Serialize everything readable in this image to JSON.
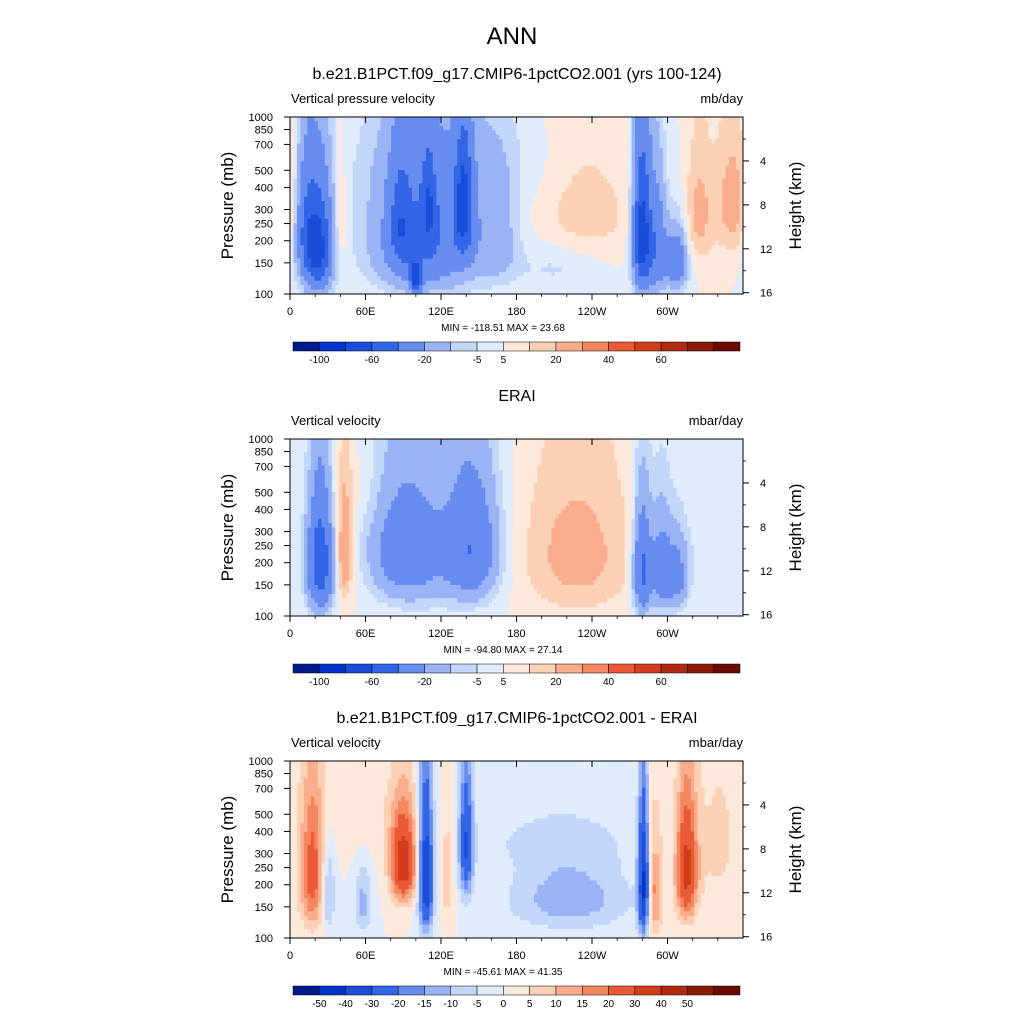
{
  "figure": {
    "main_title": "ANN"
  },
  "colors": {
    "land": "#000000",
    "axis": "#000000"
  },
  "chart_data": [
    {
      "type": "heatmap",
      "title": "b.e21.B1PCT.f09_g17.CMIP6-1pctCO2.001 (yrs 100-124)",
      "left_label": "Vertical pressure velocity",
      "right_label": "mb/day",
      "ylabel": "Pressure (mb)",
      "ylabel_right": "Height (km)",
      "x_ticks": [
        "0",
        "60E",
        "120E",
        "180",
        "120W",
        "60W"
      ],
      "x_tick_values": [
        0,
        60,
        120,
        180,
        240,
        300
      ],
      "xlim": [
        0,
        360
      ],
      "y_ticks": [
        "100",
        "150",
        "200",
        "250",
        "300",
        "400",
        "500",
        "700",
        "850",
        "1000"
      ],
      "y_tick_values": [
        100,
        150,
        200,
        250,
        300,
        400,
        500,
        700,
        850,
        1000
      ],
      "ylim": [
        1000,
        100
      ],
      "height_ticks": [
        "4",
        "8",
        "12",
        "16"
      ],
      "height_tick_values": [
        4,
        8,
        12,
        16
      ],
      "stats": "MIN = -118.51  MAX =  23.68",
      "min": -118.51,
      "max": 23.68,
      "colorbar_labels": [
        "-100",
        "-60",
        "-20",
        "-5",
        "5",
        "20",
        "40",
        "60"
      ],
      "colorbar_colors": [
        "#001a8c",
        "#0033cc",
        "#1a4dd9",
        "#3366e6",
        "#668cf0",
        "#99b3f5",
        "#c2d6fa",
        "#e0ecfc",
        "#fde9dc",
        "#fcd0b4",
        "#f9ad8c",
        "#f48660",
        "#ea5a34",
        "#d23d1c",
        "#b02a12",
        "#8c1a08",
        "#6b0a00"
      ],
      "topography": true,
      "features": [
        {
          "lon": 22,
          "lev": 550,
          "sx": 8,
          "sy": 260,
          "amp": -70
        },
        {
          "lon": 12,
          "lev": 400,
          "sx": 6,
          "sy": 220,
          "amp": -25
        },
        {
          "lon": 40,
          "lev": 400,
          "sx": 3.5,
          "sy": 220,
          "amp": 9
        },
        {
          "lon": 108,
          "lev": 480,
          "sx": 28,
          "sy": 290,
          "amp": -42
        },
        {
          "lon": 88,
          "lev": 400,
          "sx": 6,
          "sy": 190,
          "amp": -30
        },
        {
          "lon": 110,
          "lev": 320,
          "sx": 4,
          "sy": 140,
          "amp": -30
        },
        {
          "lon": 138,
          "lev": 320,
          "sx": 5,
          "sy": 170,
          "amp": -55
        },
        {
          "lon": 100,
          "lev": 820,
          "sx": 3,
          "sy": 120,
          "amp": -60
        },
        {
          "lon": 165,
          "lev": 480,
          "sx": 12,
          "sy": 250,
          "amp": -12
        },
        {
          "lon": 235,
          "lev": 320,
          "sx": 26,
          "sy": 200,
          "amp": 9
        },
        {
          "lon": 212,
          "lev": 700,
          "sx": 25,
          "sy": 160,
          "amp": -6
        },
        {
          "lon": 280,
          "lev": 480,
          "sx": 5,
          "sy": 290,
          "amp": -75
        },
        {
          "lon": 292,
          "lev": 550,
          "sx": 5,
          "sy": 260,
          "amp": -35
        },
        {
          "lon": 307,
          "lev": 650,
          "sx": 6,
          "sy": 180,
          "amp": -35
        },
        {
          "lon": 325,
          "lev": 350,
          "sx": 8,
          "sy": 200,
          "amp": 12
        },
        {
          "lon": 352,
          "lev": 300,
          "sx": 10,
          "sy": 180,
          "amp": 14
        },
        {
          "lon": 150,
          "lev": 180,
          "sx": 80,
          "sy": 90,
          "amp": -4
        }
      ]
    },
    {
      "type": "heatmap",
      "title": "ERAI",
      "left_label": "Vertical velocity",
      "right_label": "mbar/day",
      "ylabel": "Pressure (mb)",
      "ylabel_right": "Height (km)",
      "x_ticks": [
        "0",
        "60E",
        "120E",
        "180",
        "120W",
        "60W"
      ],
      "x_tick_values": [
        0,
        60,
        120,
        180,
        240,
        300
      ],
      "xlim": [
        0,
        360
      ],
      "y_ticks": [
        "100",
        "150",
        "200",
        "250",
        "300",
        "400",
        "500",
        "700",
        "850",
        "1000"
      ],
      "y_tick_values": [
        100,
        150,
        200,
        250,
        300,
        400,
        500,
        700,
        850,
        1000
      ],
      "ylim": [
        1000,
        100
      ],
      "height_ticks": [
        "4",
        "8",
        "12",
        "16"
      ],
      "height_tick_values": [
        4,
        8,
        12,
        16
      ],
      "stats": "MIN = -94.80  MAX =  27.14",
      "min": -94.8,
      "max": 27.14,
      "colorbar_labels": [
        "-100",
        "-60",
        "-20",
        "-5",
        "5",
        "20",
        "40",
        "60"
      ],
      "colorbar_colors": [
        "#001a8c",
        "#0033cc",
        "#1a4dd9",
        "#3366e6",
        "#668cf0",
        "#99b3f5",
        "#c2d6fa",
        "#e0ecfc",
        "#fde9dc",
        "#fcd0b4",
        "#f9ad8c",
        "#f48660",
        "#ea5a34",
        "#d23d1c",
        "#b02a12",
        "#8c1a08",
        "#6b0a00"
      ],
      "topography": false,
      "features": [
        {
          "lon": 24,
          "lev": 500,
          "sx": 7,
          "sy": 270,
          "amp": -55
        },
        {
          "lon": 43,
          "lev": 450,
          "sx": 5,
          "sy": 230,
          "amp": 18
        },
        {
          "lon": 90,
          "lev": 420,
          "sx": 18,
          "sy": 230,
          "amp": -28
        },
        {
          "lon": 145,
          "lev": 420,
          "sx": 14,
          "sy": 230,
          "amp": -32
        },
        {
          "lon": 118,
          "lev": 420,
          "sx": 30,
          "sy": 320,
          "amp": -12
        },
        {
          "lon": 228,
          "lev": 450,
          "sx": 32,
          "sy": 320,
          "amp": 13
        },
        {
          "lon": 280,
          "lev": 550,
          "sx": 5,
          "sy": 260,
          "amp": -45
        },
        {
          "lon": 295,
          "lev": 550,
          "sx": 6,
          "sy": 240,
          "amp": -30
        },
        {
          "lon": 308,
          "lev": 600,
          "sx": 6,
          "sy": 200,
          "amp": -25
        },
        {
          "lon": 340,
          "lev": 400,
          "sx": 20,
          "sy": 250,
          "amp": -5
        },
        {
          "lon": 60,
          "lev": 200,
          "sx": 40,
          "sy": 80,
          "amp": 3
        }
      ]
    },
    {
      "type": "heatmap",
      "title": "b.e21.B1PCT.f09_g17.CMIP6-1pctCO2.001 - ERAI",
      "left_label": "Vertical velocity",
      "right_label": "mbar/day",
      "ylabel": "Pressure (mb)",
      "ylabel_right": "Height (km)",
      "x_ticks": [
        "0",
        "60E",
        "120E",
        "180",
        "120W",
        "60W"
      ],
      "x_tick_values": [
        0,
        60,
        120,
        180,
        240,
        300
      ],
      "xlim": [
        0,
        360
      ],
      "y_ticks": [
        "100",
        "150",
        "200",
        "250",
        "300",
        "400",
        "500",
        "700",
        "850",
        "1000"
      ],
      "y_tick_values": [
        100,
        150,
        200,
        250,
        300,
        400,
        500,
        700,
        850,
        1000
      ],
      "ylim": [
        1000,
        100
      ],
      "height_ticks": [
        "4",
        "8",
        "12",
        "16"
      ],
      "height_tick_values": [
        4,
        8,
        12,
        16
      ],
      "stats": "MIN = -45.61  MAX =  41.35",
      "min": -45.61,
      "max": 41.35,
      "colorbar_labels": [
        "-50",
        "-40",
        "-30",
        "-20",
        "-15",
        "-10",
        "-5",
        "0",
        "5",
        "10",
        "15",
        "20",
        "30",
        "40",
        "50"
      ],
      "colorbar_colors": [
        "#001a8c",
        "#0033cc",
        "#1a4dd9",
        "#3366e6",
        "#668cf0",
        "#99b3f5",
        "#c2d6fa",
        "#e0ecfc",
        "#fde9dc",
        "#fcd0b4",
        "#f9ad8c",
        "#f48660",
        "#ea5a34",
        "#d23d1c",
        "#b02a12",
        "#8c1a08",
        "#6b0a00"
      ],
      "topography": true,
      "features": [
        {
          "lon": 18,
          "lev": 450,
          "sx": 7,
          "sy": 270,
          "amp": 24
        },
        {
          "lon": 30,
          "lev": 550,
          "sx": 4,
          "sy": 230,
          "amp": -14
        },
        {
          "lon": 58,
          "lev": 650,
          "sx": 5,
          "sy": 200,
          "amp": -12
        },
        {
          "lon": 90,
          "lev": 380,
          "sx": 7,
          "sy": 150,
          "amp": 38
        },
        {
          "lon": 108,
          "lev": 450,
          "sx": 4,
          "sy": 300,
          "amp": -40
        },
        {
          "lon": 140,
          "lev": 300,
          "sx": 4,
          "sy": 180,
          "amp": -30
        },
        {
          "lon": 125,
          "lev": 450,
          "sx": 4,
          "sy": 250,
          "amp": 8
        },
        {
          "lon": 222,
          "lev": 600,
          "sx": 34,
          "sy": 200,
          "amp": -14
        },
        {
          "lon": 210,
          "lev": 280,
          "sx": 45,
          "sy": 80,
          "amp": -5
        },
        {
          "lon": 281,
          "lev": 500,
          "sx": 3,
          "sy": 300,
          "amp": -42
        },
        {
          "lon": 290,
          "lev": 550,
          "sx": 5,
          "sy": 260,
          "amp": 18
        },
        {
          "lon": 315,
          "lev": 420,
          "sx": 6,
          "sy": 230,
          "amp": 33
        },
        {
          "lon": 340,
          "lev": 300,
          "sx": 15,
          "sy": 250,
          "amp": 6
        },
        {
          "lon": 60,
          "lev": 200,
          "sx": 30,
          "sy": 100,
          "amp": 4
        }
      ]
    }
  ]
}
